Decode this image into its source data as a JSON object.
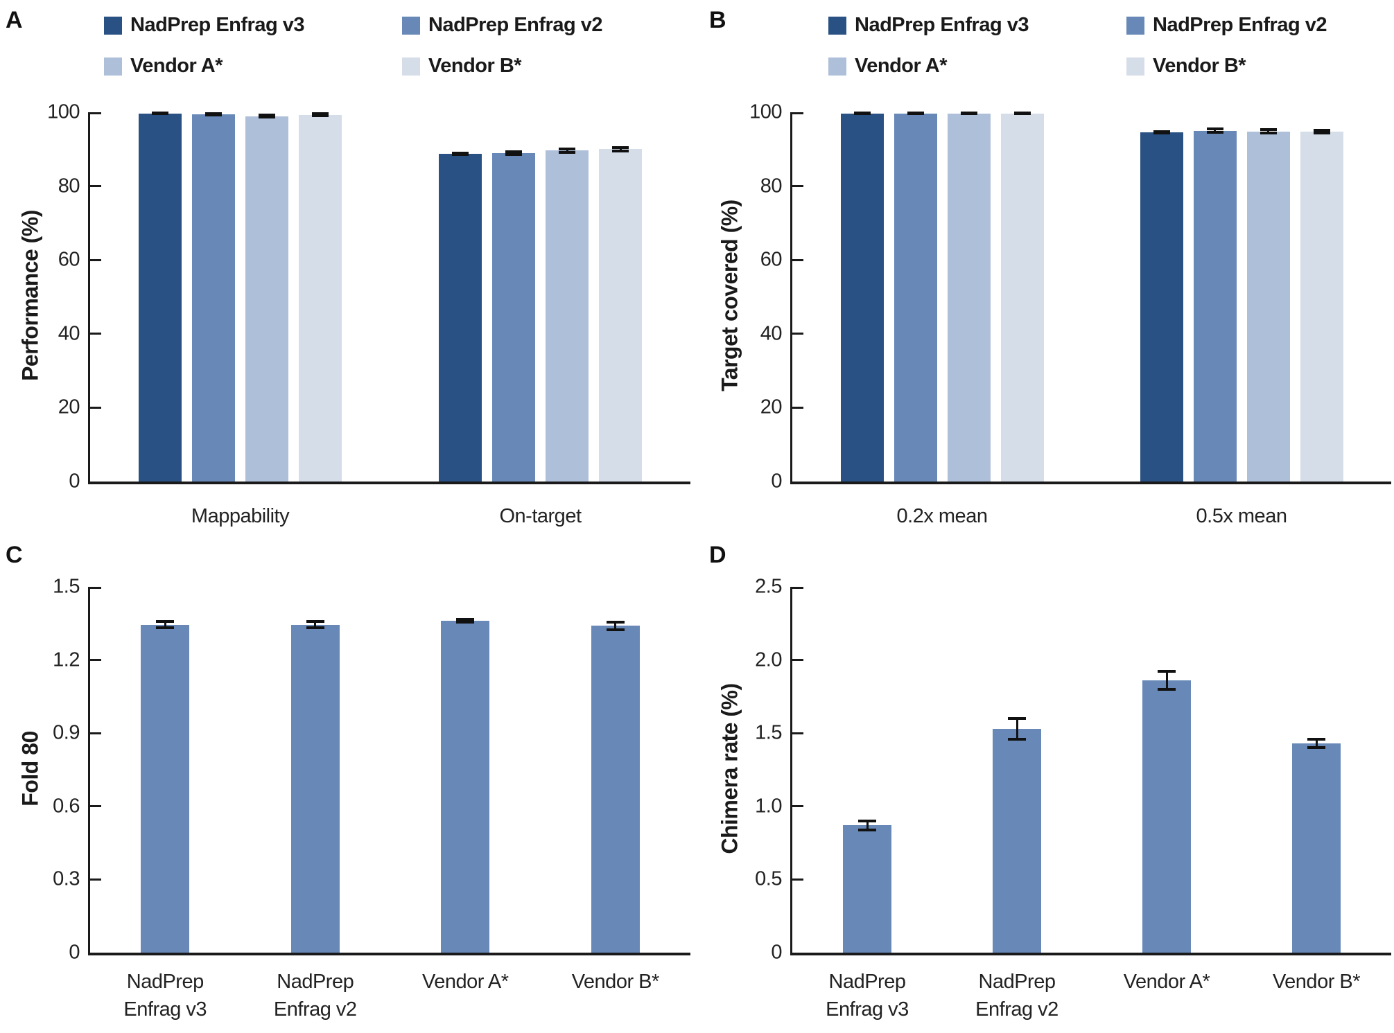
{
  "chart_data": [
    {
      "panel": "A",
      "type": "bar",
      "ylabel": "Performance (%)",
      "ylim": [
        0,
        100
      ],
      "ytick_values": [
        0,
        20,
        40,
        60,
        80,
        100
      ],
      "ytick_labels": [
        "0",
        "20",
        "40",
        "60",
        "80",
        "100"
      ],
      "categories": [
        "Mappability",
        "On-target"
      ],
      "grid": false,
      "legend_position": "top",
      "legend": [
        {
          "label": "NadPrep Enfrag v3",
          "color": "#2a5183"
        },
        {
          "label": "NadPrep Enfrag v2",
          "color": "#6889b8"
        },
        {
          "label": "Vendor A*",
          "color": "#aebfd9"
        },
        {
          "label": "Vendor B*",
          "color": "#d5dde9"
        }
      ],
      "series": [
        {
          "name": "NadPrep Enfrag v3",
          "color": "#2a5183",
          "values": [
            99.7,
            88.8
          ],
          "errors": [
            0.15,
            0.2
          ]
        },
        {
          "name": "NadPrep Enfrag v2",
          "color": "#6889b8",
          "values": [
            99.5,
            88.9
          ],
          "errors": [
            0.2,
            0.35
          ]
        },
        {
          "name": "Vendor A*",
          "color": "#aebfd9",
          "values": [
            98.9,
            89.6
          ],
          "errors": [
            0.3,
            0.45
          ]
        },
        {
          "name": "Vendor B*",
          "color": "#d5dde9",
          "values": [
            99.3,
            90.0
          ],
          "errors": [
            0.25,
            0.45
          ]
        }
      ]
    },
    {
      "panel": "B",
      "type": "bar",
      "ylabel": "Target covered (%)",
      "ylim": [
        0,
        100
      ],
      "ytick_values": [
        0,
        20,
        40,
        60,
        80,
        100
      ],
      "ytick_labels": [
        "0",
        "20",
        "40",
        "60",
        "80",
        "100"
      ],
      "categories": [
        "0.2x mean",
        "0.5x mean"
      ],
      "grid": false,
      "legend_position": "top",
      "legend": [
        {
          "label": "NadPrep Enfrag v3",
          "color": "#2a5183"
        },
        {
          "label": "NadPrep Enfrag v2",
          "color": "#6889b8"
        },
        {
          "label": "Vendor A*",
          "color": "#aebfd9"
        },
        {
          "label": "Vendor B*",
          "color": "#d5dde9"
        }
      ],
      "series": [
        {
          "name": "NadPrep Enfrag v3",
          "color": "#2a5183",
          "values": [
            99.7,
            94.5
          ],
          "errors": [
            0.1,
            0.2
          ]
        },
        {
          "name": "NadPrep Enfrag v2",
          "color": "#6889b8",
          "values": [
            99.7,
            95.0
          ],
          "errors": [
            0.1,
            0.45
          ]
        },
        {
          "name": "Vendor A*",
          "color": "#aebfd9",
          "values": [
            99.7,
            94.8
          ],
          "errors": [
            0.1,
            0.45
          ]
        },
        {
          "name": "Vendor B*",
          "color": "#d5dde9",
          "values": [
            99.7,
            94.7
          ],
          "errors": [
            0.1,
            0.4
          ]
        }
      ]
    },
    {
      "panel": "C",
      "type": "bar",
      "ylabel": "Fold 80",
      "ylim": [
        0,
        1.5
      ],
      "ytick_values": [
        0,
        0.3,
        0.6,
        0.9,
        1.2,
        1.5
      ],
      "ytick_labels": [
        "0",
        "0.3",
        "0.6",
        "0.9",
        "1.2",
        "1.5"
      ],
      "categories": [
        "NadPrep\nEnfrag v3",
        "NadPrep\nEnfrag v2",
        "Vendor A*",
        "Vendor B*"
      ],
      "grid": false,
      "series": [
        {
          "color": "#6889b8",
          "values": [
            1.345,
            1.345,
            1.36,
            1.34
          ],
          "errors": [
            0.013,
            0.013,
            0.006,
            0.015
          ]
        }
      ]
    },
    {
      "panel": "D",
      "type": "bar",
      "ylabel": "Chimera rate (%)",
      "ylim": [
        0,
        2.5
      ],
      "ytick_values": [
        0,
        0.5,
        1.0,
        1.5,
        2.0,
        2.5
      ],
      "ytick_labels": [
        "0",
        "0.5",
        "1.0",
        "1.5",
        "2.0",
        "2.5"
      ],
      "categories": [
        "NadPrep\nEnfrag v3",
        "NadPrep\nEnfrag v2",
        "Vendor A*",
        "Vendor B*"
      ],
      "grid": false,
      "series": [
        {
          "color": "#6889b8",
          "values": [
            0.87,
            1.53,
            1.86,
            1.43
          ],
          "errors": [
            0.03,
            0.07,
            0.06,
            0.03
          ]
        }
      ]
    }
  ]
}
